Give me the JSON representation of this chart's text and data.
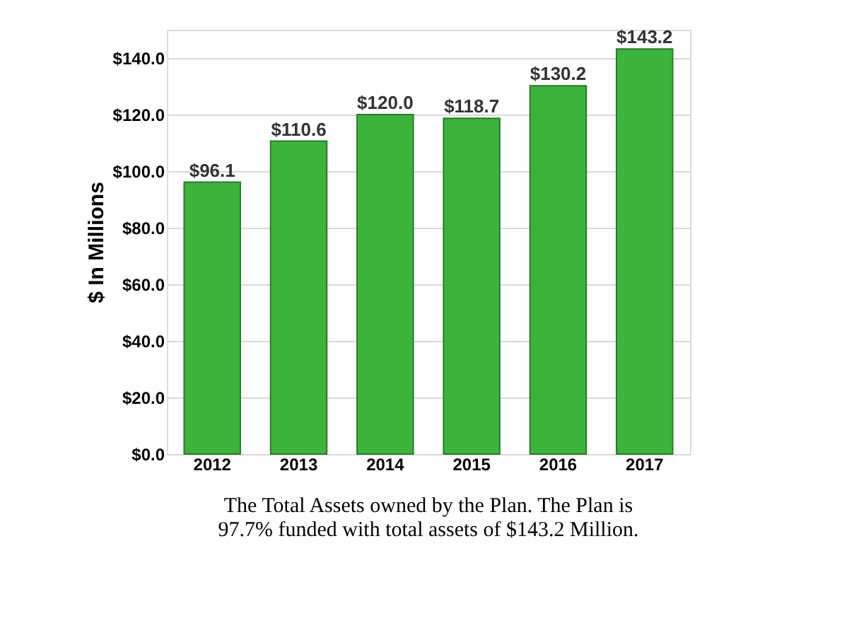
{
  "chart_data": {
    "type": "bar",
    "categories": [
      "2012",
      "2013",
      "2014",
      "2015",
      "2016",
      "2017"
    ],
    "values": [
      96.1,
      110.6,
      120.0,
      118.7,
      130.2,
      143.2
    ],
    "value_labels": [
      "$96.1",
      "$110.6",
      "$120.0",
      "$118.7",
      "$130.2",
      "$143.2"
    ],
    "color": "#3cb43c",
    "ylabel": "$ In Millions",
    "ylim": [
      0,
      150
    ],
    "yticks": [
      {
        "value": 0,
        "label": "$0.0"
      },
      {
        "value": 20,
        "label": "$20.0"
      },
      {
        "value": 40,
        "label": "$40.0"
      },
      {
        "value": 60,
        "label": "$60.0"
      },
      {
        "value": 80,
        "label": "$80.0"
      },
      {
        "value": 100,
        "label": "$100.0"
      },
      {
        "value": 120,
        "label": "$120.0"
      },
      {
        "value": 140,
        "label": "$140.0"
      }
    ],
    "grid": "y",
    "annotations": [
      "The Total Assets owned by the Plan. The Plan is",
      "97.7% funded with total assets of $143.2 Million."
    ]
  }
}
